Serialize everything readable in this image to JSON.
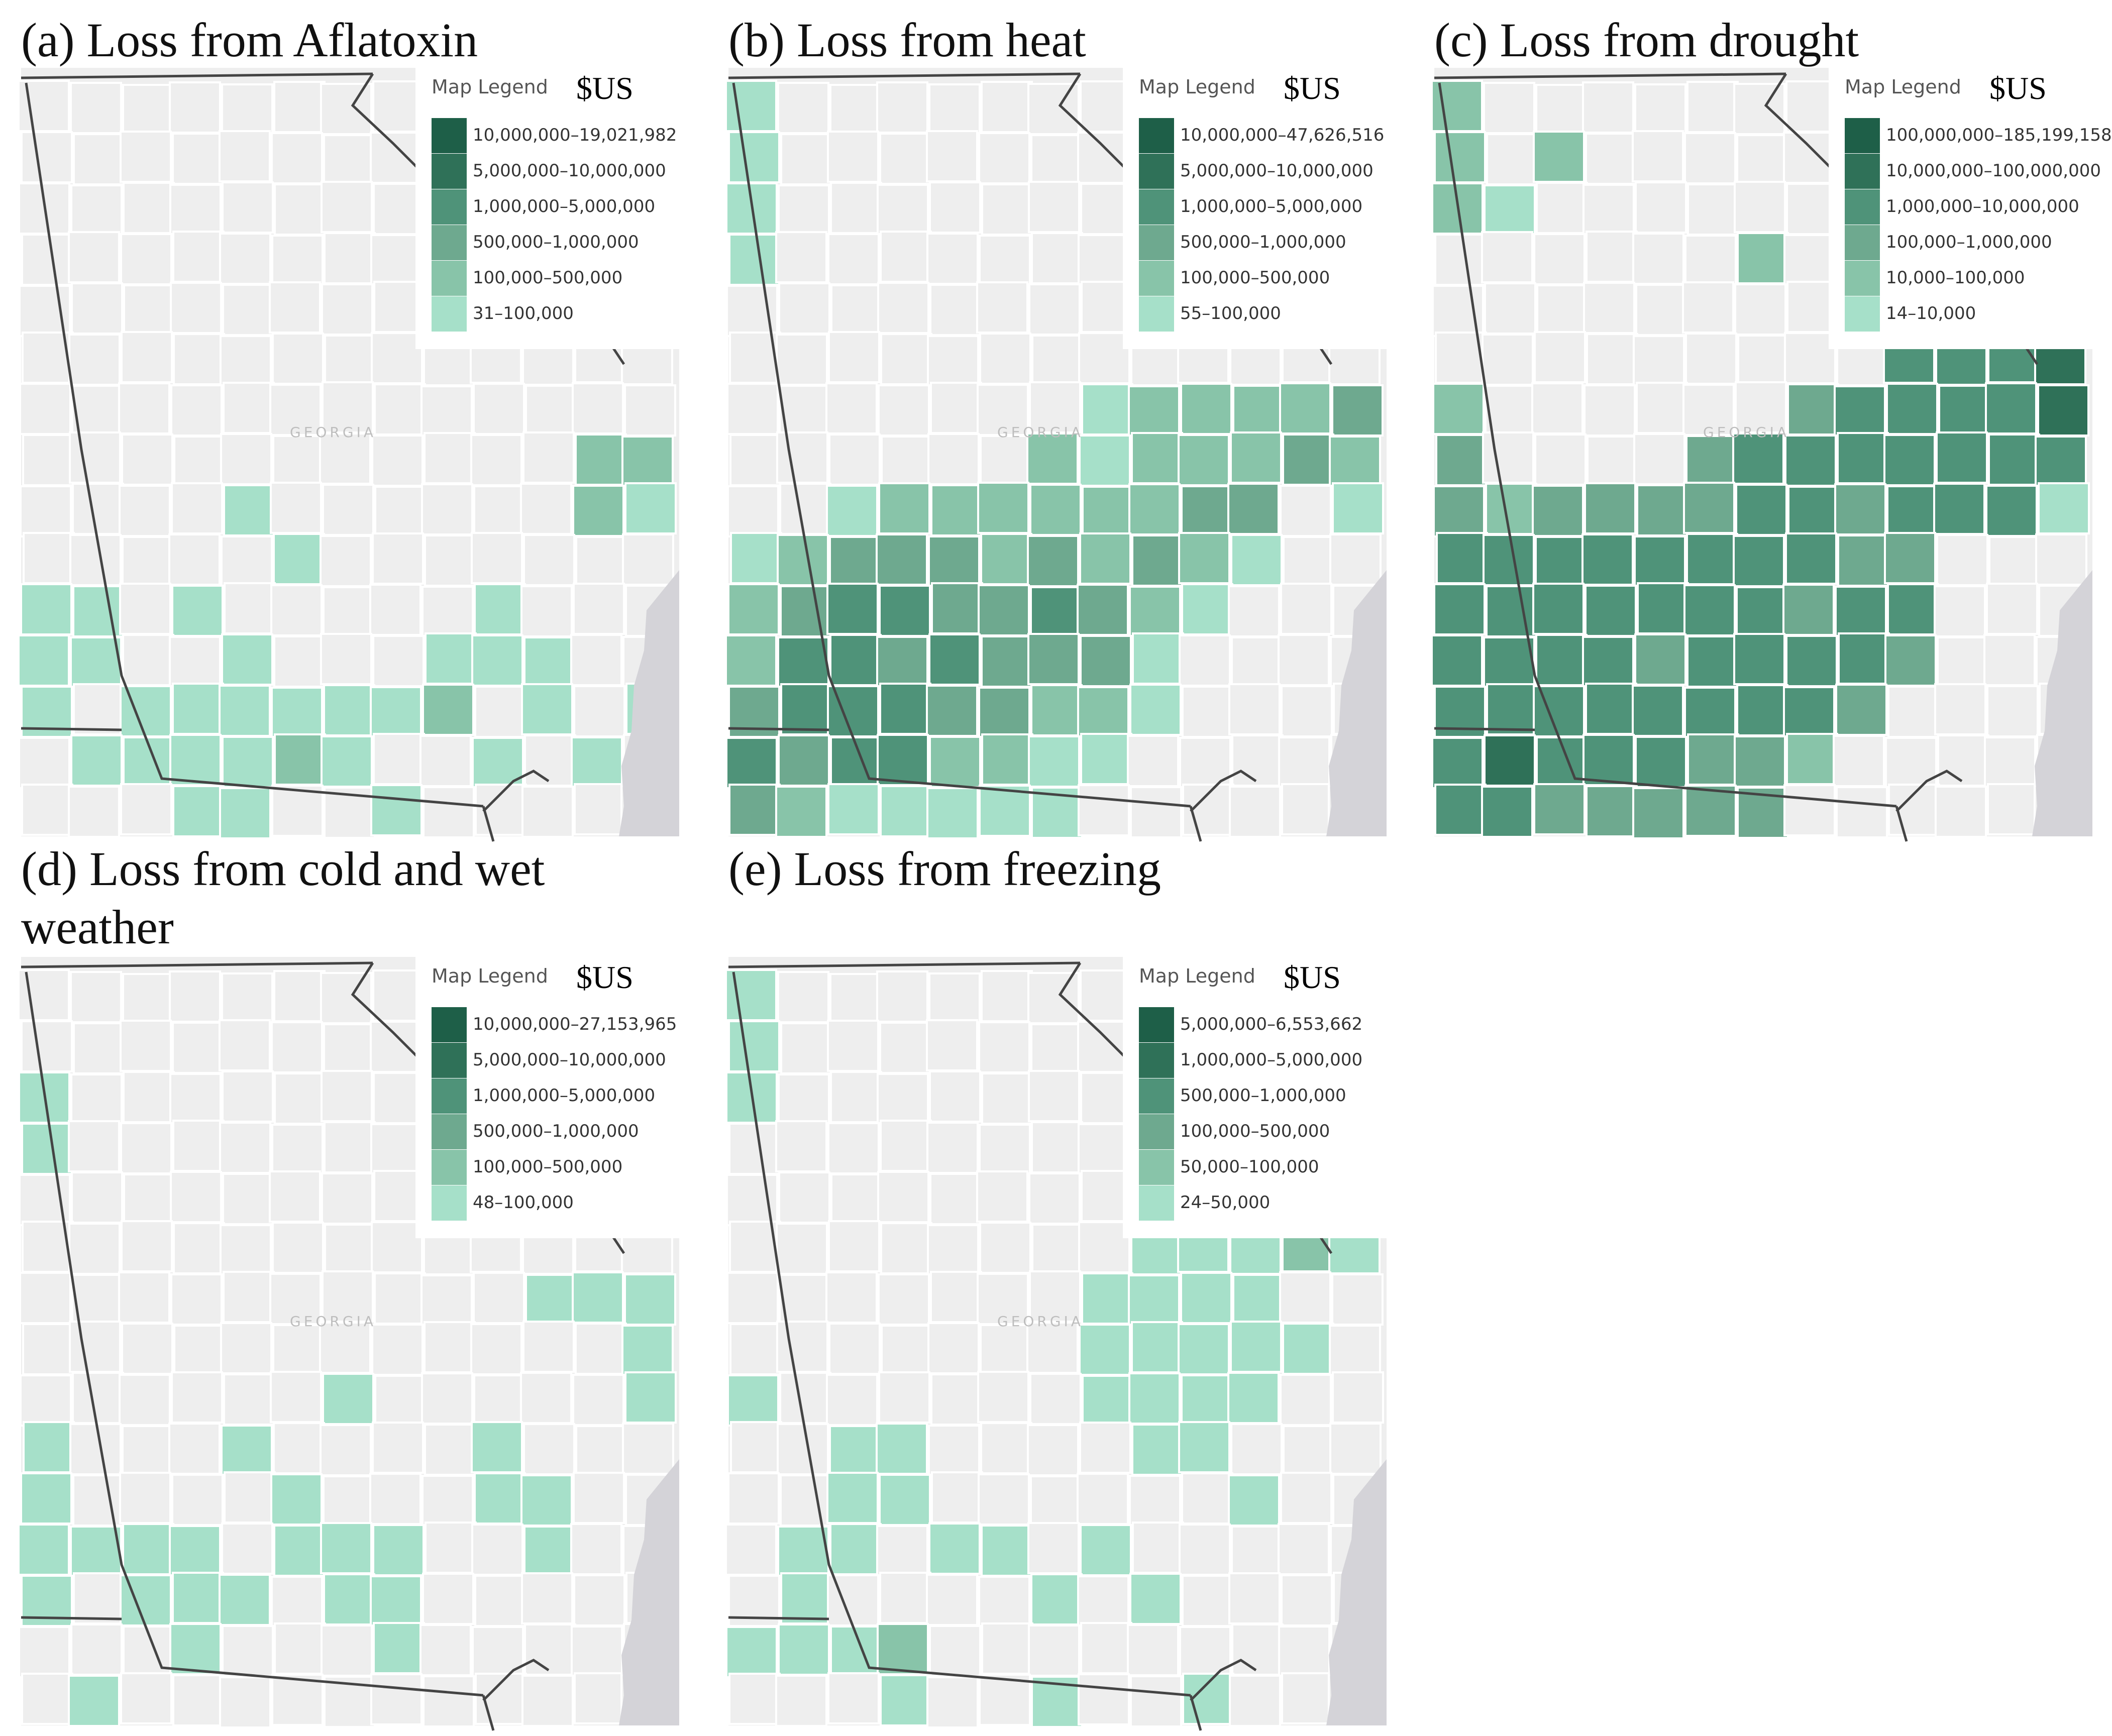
{
  "colors": {
    "c1": "#1e5f48",
    "c2": "#2f7158",
    "c3": "#4f9379",
    "c4": "#6ea98f",
    "c5": "#88c4a9",
    "c6": "#a6e0c9",
    "land": "#eeeeee",
    "ocean": "#d4d3d8",
    "border": "#444444"
  },
  "map_label": "GEORGIA",
  "legend_heading": "Map Legend",
  "currency": "$US",
  "panels": [
    {
      "title": "(a) Loss from Aflatoxin",
      "legend": [
        "10,000,000–19,021,982",
        "5,000,000–10,000,000",
        "1,000,000–5,000,000",
        "500,000–1,000,000",
        "100,000–500,000",
        "31–100,000"
      ]
    },
    {
      "title": "(b) Loss from heat",
      "legend": [
        "10,000,000–47,626,516",
        "5,000,000–10,000,000",
        "1,000,000–5,000,000",
        "500,000–1,000,000",
        "100,000–500,000",
        "55–100,000"
      ]
    },
    {
      "title": "(c) Loss from drought",
      "legend": [
        "100,000,000–185,199,158",
        "10,000,000–100,000,000",
        "1,000,000–10,000,000",
        "100,000–1,000,000",
        "10,000–100,000",
        "14–10,000"
      ]
    },
    {
      "title_line1": "(d) Loss from cold and wet",
      "title_line2": "weather",
      "legend": [
        "10,000,000–27,153,965",
        "5,000,000–10,000,000",
        "1,000,000–5,000,000",
        "500,000–1,000,000",
        "100,000–500,000",
        "48–100,000"
      ]
    },
    {
      "title": "(e) Loss from freezing",
      "legend": [
        "5,000,000–6,553,662",
        "1,000,000–5,000,000",
        "500,000–1,000,000",
        "100,000–500,000",
        "50,000–100,000",
        "24–50,000"
      ]
    }
  ]
}
